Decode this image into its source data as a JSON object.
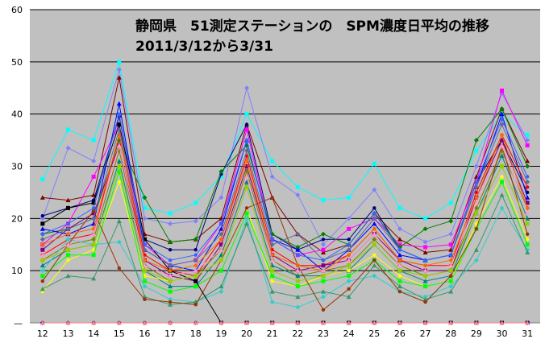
{
  "chart_data": {
    "type": "line",
    "title": "静岡県　51測定ステーションの　SPM濃度日平均の推移",
    "subtitle": "2011/3/12から3/31",
    "xlabel": "",
    "ylabel": "",
    "x": [
      12,
      13,
      14,
      15,
      16,
      17,
      18,
      19,
      20,
      21,
      22,
      23,
      24,
      25,
      26,
      27,
      28,
      29,
      30,
      31
    ],
    "ylim": [
      0,
      60
    ],
    "yticks": [
      0,
      10,
      20,
      30,
      40,
      50,
      60
    ],
    "y_tick_labels": [
      "—",
      "10",
      "20",
      "30",
      "40",
      "50",
      "60"
    ],
    "grid": true,
    "background": "#c0c0c0",
    "legend": "none",
    "series": [
      {
        "color": "#00ffff",
        "values": [
          27.5,
          37,
          35,
          50,
          22,
          21,
          23,
          28,
          40,
          31,
          26,
          23.5,
          24,
          30.5,
          22,
          20,
          23,
          33,
          40,
          36
        ]
      },
      {
        "color": "#8080ff",
        "values": [
          20,
          33.5,
          31,
          48.5,
          20,
          19,
          19.5,
          24,
          45,
          28,
          24.5,
          15,
          20,
          25.5,
          18,
          15.5,
          17,
          30,
          44,
          35
        ]
      },
      {
        "color": "#800000",
        "values": [
          24,
          23.5,
          24.5,
          47,
          17,
          15.5,
          16,
          20,
          38,
          24,
          17,
          13.5,
          15,
          21,
          16,
          13.5,
          14,
          28,
          41,
          31
        ]
      },
      {
        "color": "#000080",
        "values": [
          20.5,
          22,
          23.5,
          39.5,
          16,
          14,
          14,
          28.5,
          38,
          17,
          14,
          16,
          16,
          22,
          14,
          12,
          13,
          27,
          35,
          25
        ]
      },
      {
        "color": "#ff00ff",
        "values": [
          15,
          19,
          28,
          38,
          15,
          11,
          12,
          19,
          37,
          16,
          13,
          14,
          18,
          20,
          15,
          14.5,
          15,
          27,
          44.5,
          34
        ]
      },
      {
        "color": "#008000",
        "values": [
          17,
          18,
          20,
          35,
          24,
          15.5,
          16,
          29,
          34,
          17,
          14.5,
          17,
          15,
          21,
          14.5,
          18,
          19.5,
          35,
          41,
          30
        ]
      },
      {
        "color": "#0000ff",
        "values": [
          18,
          17,
          19,
          42,
          14,
          11,
          10,
          18,
          35,
          16,
          14,
          10,
          14,
          19,
          13,
          12,
          13,
          26,
          40,
          24
        ]
      },
      {
        "color": "#ff0000",
        "values": [
          13,
          16,
          17,
          36,
          13,
          10,
          9,
          16,
          32,
          14,
          11,
          11,
          13,
          18,
          12,
          11,
          11,
          25,
          36,
          26
        ]
      },
      {
        "color": "#800080",
        "values": [
          14,
          18,
          21,
          34,
          12,
          9,
          8,
          15,
          30,
          13,
          10,
          11,
          12,
          17,
          12,
          10,
          10,
          24,
          35,
          23
        ]
      },
      {
        "color": "#808000",
        "values": [
          12,
          15,
          16,
          33,
          11,
          8,
          9,
          14,
          29,
          12,
          9,
          10,
          11,
          16,
          11,
          9,
          10,
          22,
          33,
          22
        ]
      },
      {
        "color": "#008080",
        "values": [
          11,
          14,
          15,
          31,
          10,
          7,
          7,
          13,
          27,
          11,
          9,
          9,
          10,
          15,
          10,
          8,
          9,
          21,
          32,
          20
        ]
      },
      {
        "color": "#ffff00",
        "values": [
          6,
          12,
          14,
          27,
          9,
          8,
          9,
          12,
          22,
          8,
          7,
          9,
          10,
          13,
          9,
          7,
          8,
          19,
          28,
          16
        ]
      },
      {
        "color": "#00ff00",
        "values": [
          9,
          13,
          13,
          29,
          8,
          6,
          7,
          10,
          21,
          9,
          7,
          8,
          9,
          12,
          8,
          7,
          8,
          18,
          27,
          15
        ]
      },
      {
        "color": "#33cccc",
        "values": [
          10,
          16,
          15,
          15.5,
          7,
          4.5,
          4,
          6,
          20,
          4,
          3,
          5,
          8,
          9,
          6,
          5,
          7,
          12,
          22,
          14
        ]
      },
      {
        "color": "#339966",
        "values": [
          6.5,
          9,
          8.5,
          19.5,
          5,
          3.5,
          4,
          7,
          19,
          6,
          5,
          6,
          5,
          11,
          7,
          4.5,
          6,
          14,
          24.5,
          13.5
        ]
      },
      {
        "color": "#993300",
        "values": [
          8,
          15,
          21.5,
          10.5,
          4.5,
          4,
          3.5,
          12,
          22,
          24,
          11,
          2.5,
          6.5,
          12,
          6,
          4,
          9,
          18,
          34,
          17
        ]
      },
      {
        "color": "#000000",
        "values": [
          19,
          22,
          23,
          38,
          16,
          10,
          8,
          0,
          0,
          0,
          0,
          0,
          0,
          0,
          0,
          0,
          0,
          0,
          0,
          0
        ]
      },
      {
        "color": "#0000cc",
        "values": [
          0,
          0,
          0,
          0,
          0,
          0,
          0,
          0,
          0,
          0,
          0,
          0,
          0,
          0,
          0,
          0,
          0,
          0,
          0,
          0
        ]
      },
      {
        "color": "#ff8080",
        "values": [
          0,
          0,
          0,
          0,
          0,
          0,
          0,
          0,
          0,
          0,
          0,
          0,
          0,
          0,
          0,
          0,
          0,
          0,
          0,
          0
        ]
      },
      {
        "color": "#ff6600",
        "values": [
          15,
          17,
          18,
          36,
          12,
          10,
          11,
          16,
          31,
          13,
          11,
          10,
          13,
          18,
          12,
          11,
          12,
          24,
          36,
          22
        ]
      },
      {
        "color": "#99cc00",
        "values": [
          12,
          14,
          15,
          30,
          10,
          8,
          9,
          12,
          26,
          10,
          8,
          9,
          11,
          15,
          10,
          9,
          10,
          21,
          30,
          19
        ]
      },
      {
        "color": "#666699",
        "values": [
          16,
          18,
          20,
          37,
          14,
          11,
          12,
          17,
          33,
          15,
          17,
          12,
          14,
          20,
          14,
          12,
          13,
          26,
          38,
          27
        ]
      },
      {
        "color": "#ff99cc",
        "values": [
          13,
          15,
          17,
          34,
          11,
          9,
          10,
          14,
          28,
          12,
          10,
          10,
          12,
          17,
          11,
          10,
          11,
          23,
          34,
          21
        ]
      },
      {
        "color": "#3366ff",
        "values": [
          17,
          19,
          22,
          40,
          15,
          12,
          13,
          19,
          35,
          16,
          13,
          12,
          15,
          21,
          14,
          12,
          13,
          27,
          39,
          28
        ]
      }
    ]
  }
}
